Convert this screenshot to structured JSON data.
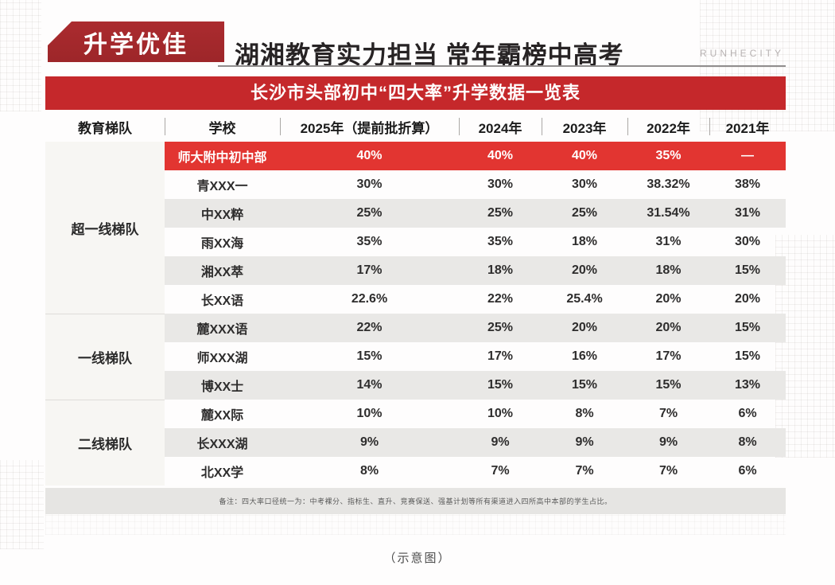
{
  "header": {
    "badge": "升学优佳",
    "title": "湖湘教育实力担当 常年霸榜中高考",
    "brand": "RUNHECITY"
  },
  "banner": {
    "title": "长沙市头部初中“四大率”升学数据一览表"
  },
  "table": {
    "columns": [
      "教育梯队",
      "学校",
      "2025年（提前批折算）",
      "2024年",
      "2023年",
      "2022年",
      "2021年"
    ],
    "groups": [
      {
        "tier": "超一线梯队",
        "rows": [
          {
            "school": "师大附中初中部",
            "values": [
              "40%",
              "40%",
              "40%",
              "35%",
              "—"
            ],
            "highlight": true
          },
          {
            "school": "青XXX一",
            "values": [
              "30%",
              "30%",
              "30%",
              "38.32%",
              "38%"
            ]
          },
          {
            "school": "中XX粹",
            "values": [
              "25%",
              "25%",
              "25%",
              "31.54%",
              "31%"
            ]
          },
          {
            "school": "雨XX海",
            "values": [
              "35%",
              "35%",
              "18%",
              "31%",
              "30%"
            ]
          },
          {
            "school": "湘XX萃",
            "values": [
              "17%",
              "18%",
              "20%",
              "18%",
              "15%"
            ]
          },
          {
            "school": "长XX语",
            "values": [
              "22.6%",
              "22%",
              "25.4%",
              "20%",
              "20%"
            ]
          }
        ]
      },
      {
        "tier": "一线梯队",
        "rows": [
          {
            "school": "麓XXX语",
            "values": [
              "22%",
              "25%",
              "20%",
              "20%",
              "15%"
            ]
          },
          {
            "school": "师XXX湖",
            "values": [
              "15%",
              "17%",
              "16%",
              "17%",
              "15%"
            ]
          },
          {
            "school": "博XX士",
            "values": [
              "14%",
              "15%",
              "15%",
              "15%",
              "13%"
            ]
          }
        ]
      },
      {
        "tier": "二线梯队",
        "rows": [
          {
            "school": "麓XX际",
            "values": [
              "10%",
              "10%",
              "8%",
              "7%",
              "6%"
            ]
          },
          {
            "school": "长XXX湖",
            "values": [
              "9%",
              "9%",
              "9%",
              "9%",
              "8%"
            ]
          },
          {
            "school": "北XX学",
            "values": [
              "8%",
              "7%",
              "7%",
              "7%",
              "6%"
            ]
          }
        ]
      }
    ],
    "footnote": "备注：四大率口径统一为：中考裸分、指标生、直升、竞赛保送、强基计划等所有渠道进入四所高中本部的学生占比。"
  },
  "caption": "（示意图）",
  "colors": {
    "badge_red": "#a52a2e",
    "banner_red": "#c5282b",
    "highlight_red": "#e23531",
    "stripe_gray": "#e9e8e6"
  },
  "chart_data": {
    "type": "table",
    "title": "长沙市头部初中“四大率”升学数据一览表",
    "columns": [
      "教育梯队",
      "学校",
      "2025年（提前批折算）",
      "2024年",
      "2023年",
      "2022年",
      "2021年"
    ],
    "rows": [
      [
        "超一线梯队",
        "师大附中初中部",
        "40%",
        "40%",
        "40%",
        "35%",
        "—"
      ],
      [
        "超一线梯队",
        "青XXX一",
        "30%",
        "30%",
        "30%",
        "38.32%",
        "38%"
      ],
      [
        "超一线梯队",
        "中XX粹",
        "25%",
        "25%",
        "25%",
        "31.54%",
        "31%"
      ],
      [
        "超一线梯队",
        "雨XX海",
        "35%",
        "35%",
        "18%",
        "31%",
        "30%"
      ],
      [
        "超一线梯队",
        "湘XX萃",
        "17%",
        "18%",
        "20%",
        "18%",
        "15%"
      ],
      [
        "超一线梯队",
        "长XX语",
        "22.6%",
        "22%",
        "25.4%",
        "20%",
        "20%"
      ],
      [
        "一线梯队",
        "麓XXX语",
        "22%",
        "25%",
        "20%",
        "20%",
        "15%"
      ],
      [
        "一线梯队",
        "师XXX湖",
        "15%",
        "17%",
        "16%",
        "17%",
        "15%"
      ],
      [
        "一线梯队",
        "博XX士",
        "14%",
        "15%",
        "15%",
        "15%",
        "13%"
      ],
      [
        "二线梯队",
        "麓XX际",
        "10%",
        "10%",
        "8%",
        "7%",
        "6%"
      ],
      [
        "二线梯队",
        "长XXX湖",
        "9%",
        "9%",
        "9%",
        "9%",
        "8%"
      ],
      [
        "二线梯队",
        "北XX学",
        "8%",
        "7%",
        "7%",
        "7%",
        "6%"
      ]
    ]
  }
}
